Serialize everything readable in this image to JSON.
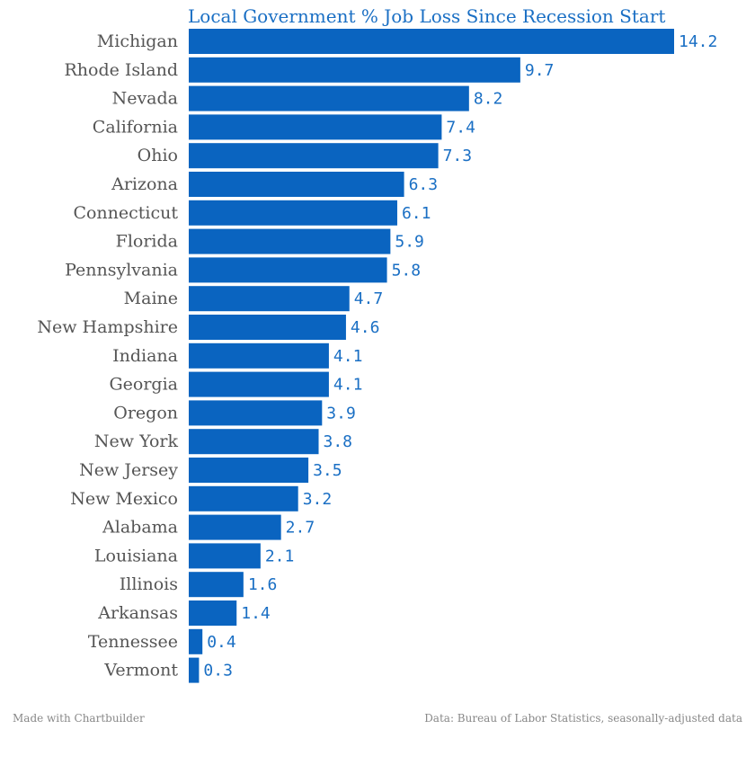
{
  "chart_data": {
    "type": "bar",
    "orientation": "horizontal",
    "title": "Local Government % Job Loss Since Recession Start",
    "categories": [
      "Michigan",
      "Rhode Island",
      "Nevada",
      "California",
      "Ohio",
      "Arizona",
      "Connecticut",
      "Florida",
      "Pennsylvania",
      "Maine",
      "New Hampshire",
      "Indiana",
      "Georgia",
      "Oregon",
      "New York",
      "New Jersey",
      "New Mexico",
      "Alabama",
      "Louisiana",
      "Illinois",
      "Arkansas",
      "Tennessee",
      "Vermont"
    ],
    "values": [
      14.2,
      9.7,
      8.2,
      7.4,
      7.3,
      6.3,
      6.1,
      5.9,
      5.8,
      4.7,
      4.6,
      4.1,
      4.1,
      3.9,
      3.8,
      3.5,
      3.2,
      2.7,
      2.1,
      1.6,
      1.4,
      0.4,
      0.3
    ],
    "value_labels": [
      "14.2",
      "9.7",
      "8.2",
      "7.4",
      "7.3",
      "6.3",
      "6.1",
      "5.9",
      "5.8",
      "4.7",
      "4.6",
      "4.1",
      "4.1",
      "3.9",
      "3.8",
      "3.5",
      "3.2",
      "2.7",
      "2.1",
      "1.6",
      "1.4",
      "0.4",
      "0.3"
    ],
    "xlim": [
      0,
      14.2
    ],
    "grid": false,
    "legend": "none",
    "bar_color": "#0a64c0",
    "label_color": "#1a6fc4"
  },
  "footer": {
    "left": "Made with Chartbuilder",
    "right": "Data: Bureau of Labor Statistics, seasonally-adjusted data"
  }
}
